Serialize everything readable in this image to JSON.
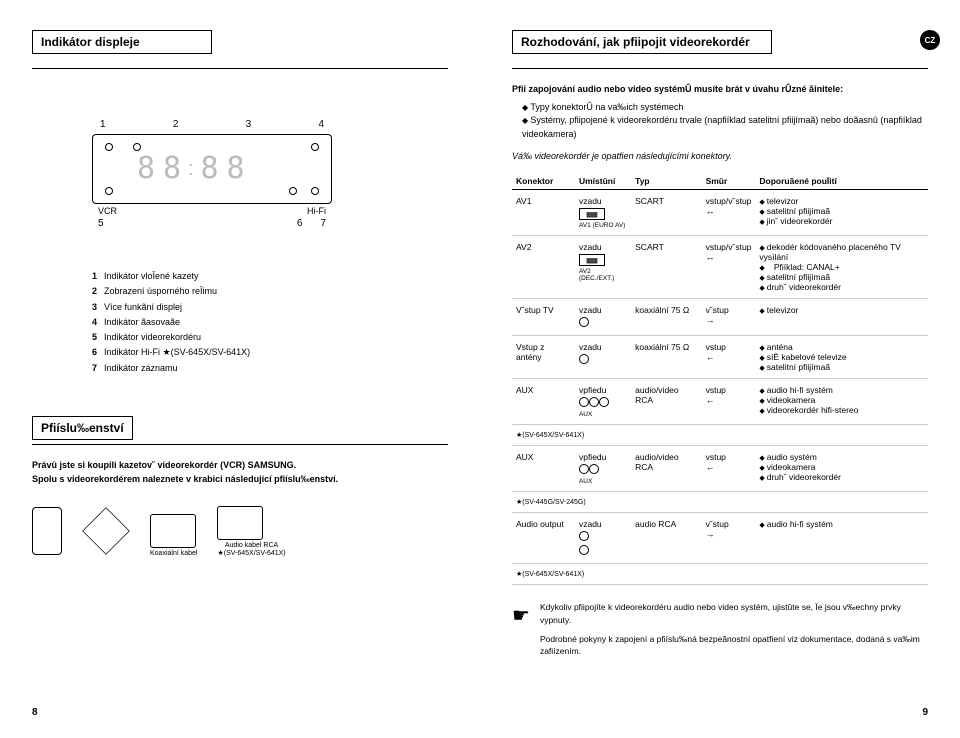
{
  "left": {
    "title": "Indikátor displeje",
    "diagram": {
      "topNums": [
        "1",
        "2",
        "3",
        "4"
      ],
      "leftLabel": "VCR",
      "rightLabel": "Hi-Fi",
      "botNums": [
        "5",
        "6",
        "7"
      ]
    },
    "legend": [
      "Indikátor vloÏené kazety",
      "Zobrazení úsporného reÏimu",
      "Více funkãní displej",
      "Indikátor ãasovaãe",
      "Indikátor videorekordéru",
      "Indikátor Hi-Fi ★(SV-645X/SV-641X)",
      "Indikátor záznamu"
    ],
    "accessories": {
      "title": "Pfiíslu‰enství",
      "line1": "Právû jste si koupili kazetov˘ videorekordér (VCR) SAMSUNG.",
      "line2": "Spolu s videorekordérem naleznete v krabici následující pfiíslu‰enství.",
      "items": [
        {
          "label": ""
        },
        {
          "label": ""
        },
        {
          "label": "Koaxiální kabel"
        },
        {
          "label": "Audio kabel RCA\n★(SV-645X/SV-641X)"
        }
      ]
    },
    "pageNum": "8"
  },
  "right": {
    "title": "Rozhodování, jak pfiipojit videorekordér",
    "cz": "CZ",
    "introLead": "Pfii zapojování audio nebo video systémÛ musíte brát v úvahu rÛzné ãinitele:",
    "introBullets": [
      "Typy konektorÛ na va‰ich systémech",
      "Systémy, pfiipojené k videorekordéru trvale (napfiíklad satelitní pfiijímaã) nebo doãasnû (napfiíklad videokamera)"
    ],
    "connNote": "Vá‰ videorekordér je opatfien následujícími konektory.",
    "table": {
      "headers": [
        "Konektor",
        "Umístûní",
        "Typ",
        "Smûr",
        "Doporuãené pouÏití"
      ],
      "rows": [
        {
          "c": "AV1",
          "loc": "vzadu",
          "portLabel": "AV1 (EURO AV)",
          "type": "SCART",
          "dir": "vstup/v˘stup",
          "dirIco": "↔",
          "use": [
            "televizor",
            "satelitní pfiijímaã",
            "jin˘ videorekordér"
          ]
        },
        {
          "c": "AV2",
          "loc": "vzadu",
          "portLabel": "AV2 (DEC./EXT.)",
          "type": "SCART",
          "dir": "vstup/v˘stup",
          "dirIco": "↔",
          "use": [
            "dekodér kódovaného placeného TV vysílání",
            "Pfiíklad: CANAL+",
            "satelitní pfiijímaã",
            "druh˘ videorekordér"
          ],
          "note2isExample": true
        },
        {
          "c": "V˘stup TV",
          "loc": "vzadu",
          "portCirc": true,
          "type": "koaxiální 75 Ω",
          "dir": "v˘stup",
          "dirIco": "→",
          "use": [
            "televizor"
          ]
        },
        {
          "c": "Vstup z antény",
          "loc": "vzadu",
          "portCirc": true,
          "type": "koaxiální 75 Ω",
          "dir": "vstup",
          "dirIco": "←",
          "use": [
            "anténa",
            "síÈ kabelové televize",
            "satelitní pfiijímaã"
          ]
        },
        {
          "c": "AUX",
          "loc": "vpfiedu",
          "portTriple": true,
          "type": "audio/video RCA",
          "dir": "vstup",
          "dirIco": "←",
          "use": [
            "audio hi-fi systém",
            "videokamera",
            "videorekordér hifi-stereo"
          ],
          "footnote": "★(SV-645X/SV-641X)"
        },
        {
          "c": "AUX",
          "loc": "vpfiedu",
          "portDouble": true,
          "type": "audio/video RCA",
          "dir": "vstup",
          "dirIco": "←",
          "use": [
            "audio systém",
            "videokamera",
            "druh˘ videorekordér"
          ],
          "footnote": "★(SV-445G/SV-245G)"
        },
        {
          "c": "Audio output",
          "loc": "vzadu",
          "portStack": true,
          "type": "audio RCA",
          "dir": "v˘stup",
          "dirIco": "→",
          "use": [
            "audio hi-fi systém"
          ],
          "footnote": "★(SV-645X/SV-641X)"
        }
      ]
    },
    "warn1": "Kdykoliv pfiipojíte k videorekordéru audio nebo video systém, ujistûte se, Ïe jsou v‰echny prvky vypnuty.",
    "warn2": "Podrobné pokyny k zapojení a pfiíslu‰ná bezpeãnostní opatfiení viz dokumentace, dodaná s va‰im zafiízením.",
    "pageNum": "9"
  }
}
